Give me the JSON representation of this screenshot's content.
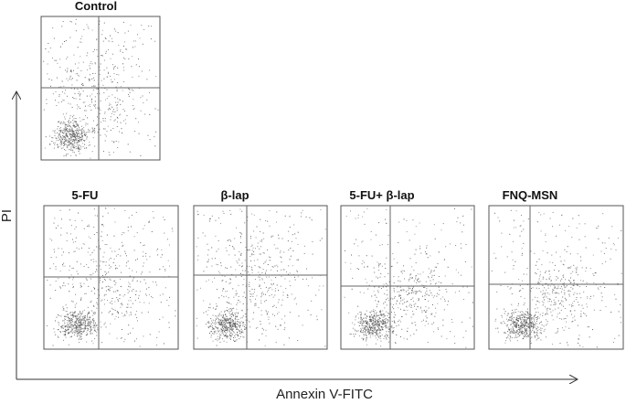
{
  "figure": {
    "panels": [
      {
        "title": "Control"
      },
      {
        "title": "5-FU"
      },
      {
        "title": "β-lap"
      },
      {
        "title": "5-FU+ β-lap"
      },
      {
        "title": "FNQ-MSN"
      }
    ],
    "x_axis_label": "Annexin V-FITC",
    "y_axis_label": "PI"
  }
}
